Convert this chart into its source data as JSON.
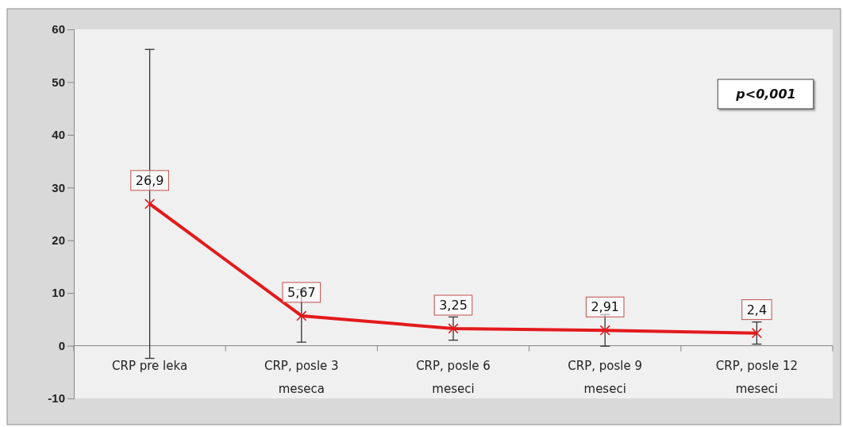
{
  "chart_data": {
    "type": "line",
    "categories": [
      "CRP pre leka",
      "CRP, posle 3 meseca",
      "CRP, posle 6 meseci",
      "CRP, posle 9 meseci",
      "CRP, posle 12 meseci"
    ],
    "series": [
      {
        "color": "#e31a1c",
        "values": [
          26.9,
          5.67,
          3.25,
          2.91,
          2.4
        ],
        "errors": [
          29.3,
          5.0,
          2.2,
          3.0,
          2.1
        ],
        "value_labels": [
          "26,9",
          "5,67",
          "3,25",
          "2,91",
          "2,4"
        ]
      }
    ],
    "ylim": [
      -10,
      60
    ],
    "yticks": [
      -10,
      0,
      10,
      20,
      30,
      40,
      50,
      60
    ],
    "marker": "cross",
    "grid": false,
    "annotations": [
      "p<0,001"
    ]
  }
}
